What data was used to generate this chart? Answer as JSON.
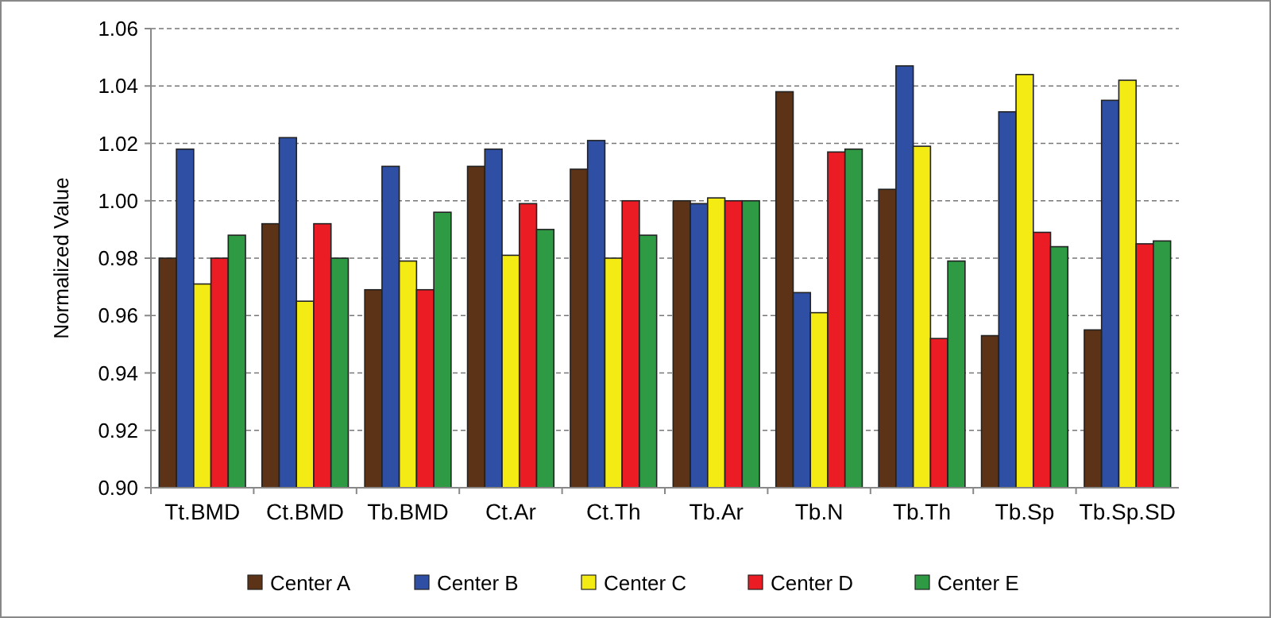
{
  "chart_data": {
    "type": "bar",
    "ylabel": "Normalized Value",
    "categories": [
      "Tt.BMD",
      "Ct.BMD",
      "Tb.BMD",
      "Ct.Ar",
      "Ct.Th",
      "Tb.Ar",
      "Tb.N",
      "Tb.Th",
      "Tb.Sp",
      "Tb.Sp.SD"
    ],
    "series": [
      {
        "name": "Center A",
        "color": "#5c3317",
        "values": [
          0.98,
          0.992,
          0.969,
          1.012,
          1.011,
          1.0,
          1.038,
          1.004,
          0.953,
          0.955
        ]
      },
      {
        "name": "Center B",
        "color": "#2e4fa3",
        "values": [
          1.018,
          1.022,
          1.012,
          1.018,
          1.021,
          0.999,
          0.968,
          1.047,
          1.031,
          1.035
        ]
      },
      {
        "name": "Center C",
        "color": "#f5eb14",
        "values": [
          0.971,
          0.965,
          0.979,
          0.981,
          0.98,
          1.001,
          0.961,
          1.019,
          1.044,
          1.042
        ]
      },
      {
        "name": "Center D",
        "color": "#ec1c24",
        "values": [
          0.98,
          0.992,
          0.969,
          0.999,
          1.0,
          1.0,
          1.017,
          0.952,
          0.989,
          0.985
        ]
      },
      {
        "name": "Center E",
        "color": "#2e9a44",
        "values": [
          0.988,
          0.98,
          0.996,
          0.99,
          0.988,
          1.0,
          1.018,
          0.979,
          0.984,
          0.986
        ]
      }
    ],
    "ylim": [
      0.9,
      1.06
    ],
    "yticks": [
      {
        "value": 0.9,
        "label": "0.90"
      },
      {
        "value": 0.92,
        "label": "0.92"
      },
      {
        "value": 0.94,
        "label": "0.94"
      },
      {
        "value": 0.96,
        "label": "0.96"
      },
      {
        "value": 0.98,
        "label": "0.98"
      },
      {
        "value": 1.0,
        "label": "1.00"
      },
      {
        "value": 1.02,
        "label": "1.02"
      },
      {
        "value": 1.04,
        "label": "1.04"
      },
      {
        "value": 1.06,
        "label": "1.06"
      }
    ],
    "grid": "y",
    "legend": "bottom"
  }
}
